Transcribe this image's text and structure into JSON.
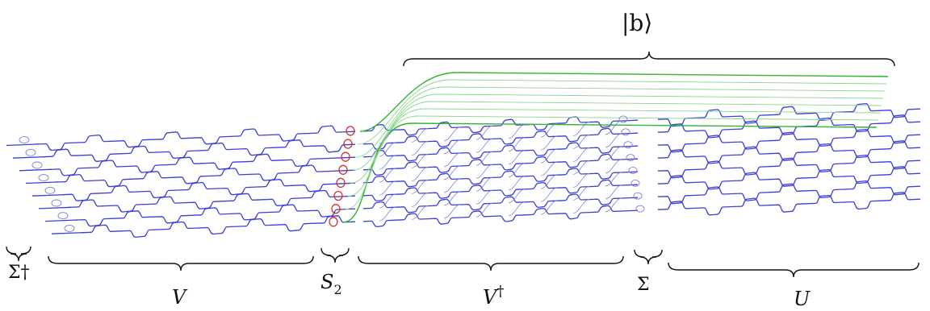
{
  "labels": {
    "sigma_dagger": "Σ†",
    "v": "V",
    "s2_main": "S",
    "s2_sub": "2",
    "v_dagger_main": "V",
    "v_dagger_sup": "†",
    "sigma": "Σ",
    "u": "U",
    "ket_b": "|b⟩"
  },
  "colors": {
    "waveguide": "#3a3fd6",
    "output_mode": "#2fb52f",
    "squeezer": "#d62f2f",
    "text": "#111111"
  }
}
